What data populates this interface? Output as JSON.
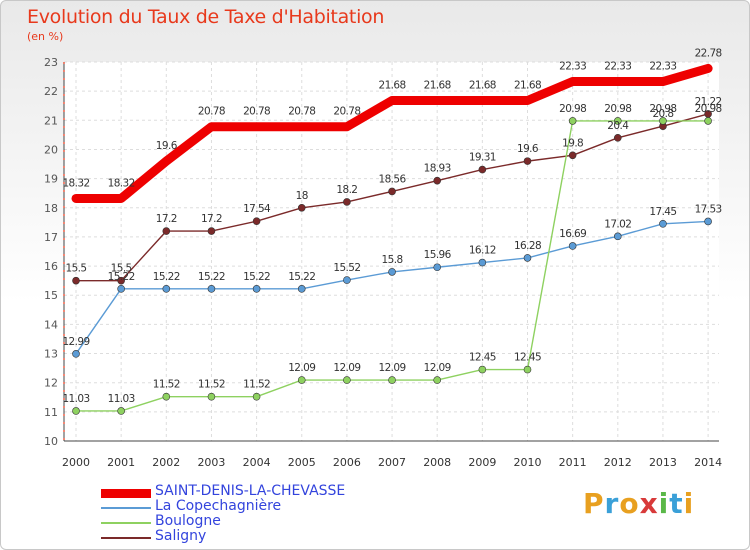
{
  "chart_data": {
    "type": "line",
    "title": "Evolution du Taux de Taxe d'Habitation",
    "ylabel": "(en %)",
    "xlabel": "",
    "x": [
      "2000",
      "2001",
      "2002",
      "2003",
      "2004",
      "2005",
      "2006",
      "2007",
      "2008",
      "2009",
      "2010",
      "2011",
      "2012",
      "2013",
      "2014"
    ],
    "ylim": [
      10,
      23
    ],
    "yticks": [
      "10",
      "11",
      "12",
      "13",
      "14",
      "15",
      "16",
      "17",
      "18",
      "19",
      "20",
      "21",
      "22",
      "23"
    ],
    "grid": true,
    "legend_position": "bottom-left",
    "series": [
      {
        "name": "SAINT-DENIS-LA-CHEVASSE",
        "color": "#ee0000",
        "values": [
          18.32,
          18.32,
          19.6,
          20.78,
          20.78,
          20.78,
          20.78,
          21.68,
          21.68,
          21.68,
          21.68,
          22.33,
          22.33,
          22.33,
          22.78
        ],
        "labels": [
          "18.32",
          "18.32",
          "19.6",
          "20.78",
          "20.78",
          "20.78",
          "20.78",
          "21.68",
          "21.68",
          "21.68",
          "21.68",
          "22.33",
          "22.33",
          "22.33",
          "22.78"
        ]
      },
      {
        "name": "La Copechagnière",
        "color": "#5b9bd5",
        "values": [
          12.99,
          15.22,
          15.22,
          15.22,
          15.22,
          15.22,
          15.52,
          15.8,
          15.96,
          16.12,
          16.28,
          16.69,
          17.02,
          17.45,
          17.53
        ],
        "labels": [
          "12.99",
          "15.22",
          "15.22",
          "15.22",
          "15.22",
          "15.22",
          "15.52",
          "15.8",
          "15.96",
          "16.12",
          "16.28",
          "16.69",
          "17.02",
          "17.45",
          "17.53"
        ]
      },
      {
        "name": "Boulogne",
        "color": "#8ed160",
        "values": [
          11.03,
          11.03,
          11.52,
          11.52,
          11.52,
          12.09,
          12.09,
          12.09,
          12.09,
          12.45,
          12.45,
          20.98,
          20.98,
          20.98,
          20.98
        ],
        "labels": [
          "11.03",
          "11.03",
          "11.52",
          "11.52",
          "11.52",
          "12.09",
          "12.09",
          "12.09",
          "12.09",
          "12.45",
          "12.45",
          "20.98",
          "20.98",
          "20.98",
          "20.98"
        ]
      },
      {
        "name": "Saligny",
        "color": "#7b2a2a",
        "values": [
          15.5,
          15.5,
          17.2,
          17.2,
          17.54,
          18,
          18.2,
          18.56,
          18.93,
          19.31,
          19.6,
          19.8,
          20.4,
          20.8,
          21.22
        ],
        "labels": [
          "15.5",
          "15.5",
          "17.2",
          "17.2",
          "17.54",
          "18",
          "18.2",
          "18.56",
          "18.93",
          "19.31",
          "19.6",
          "19.8",
          "20.4",
          "20.8",
          "21.22"
        ]
      }
    ]
  },
  "brand": {
    "letters": [
      "P",
      "r",
      "o",
      "x",
      "i",
      "t",
      "i"
    ]
  }
}
